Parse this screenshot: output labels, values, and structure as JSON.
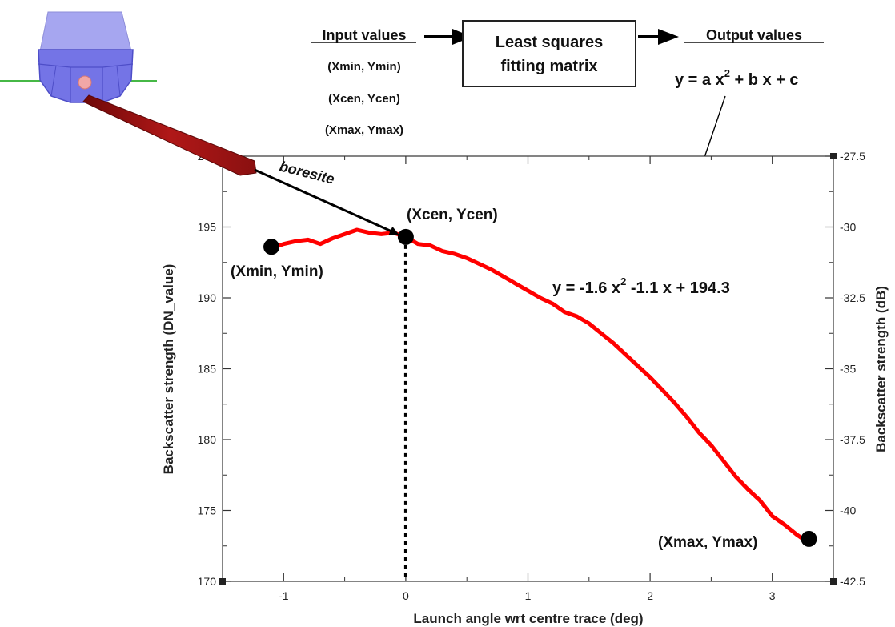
{
  "diagram": {
    "input_header": "Input values",
    "inputs": [
      "(Xmin, Ymin)",
      "(Xcen, Ycen)",
      "(Xmax, Ymax)"
    ],
    "box_label": [
      "Least squares",
      "fitting matrix"
    ],
    "output_header": "Output values",
    "output_equation": {
      "lhs": "y = a x",
      "exp": "2",
      "rhs": " + b x + c"
    },
    "boresite_label": "boresite",
    "fit_equation": {
      "lhs": "y = -1.6 x",
      "exp": "2",
      "rhs": " -1.1 x + 194.3"
    }
  },
  "colors": {
    "curve": "#ff0000",
    "vessel": "#7474e6",
    "vessel_top": "#a6a6f0",
    "beam": "#a31212",
    "waterline": "#46b846",
    "markers": "#000000"
  },
  "chart_data": {
    "type": "line",
    "xlabel": "Launch angle wrt centre trace (deg)",
    "ylabel": "Backscatter strength (DN_value)",
    "y2label": "Backscatter strength (dB)",
    "xlim": [
      -1.5,
      3.5
    ],
    "ylim": [
      170,
      200
    ],
    "y2lim": [
      -42.5,
      -27.5
    ],
    "x_ticks": [
      "-1",
      "0",
      "1",
      "2",
      "3"
    ],
    "y_ticks": [
      "170",
      "175",
      "180",
      "185",
      "190",
      "195",
      "200"
    ],
    "y2_ticks": [
      "-42.5",
      "-40",
      "-37.5",
      "-35",
      "-32.5",
      "-30",
      "-27.5"
    ],
    "series": [
      {
        "x": [
          -1.1,
          -1.0,
          -0.9,
          -0.8,
          -0.7,
          -0.6,
          -0.5,
          -0.4,
          -0.3,
          -0.2,
          -0.1,
          0.0,
          0.1,
          0.2,
          0.3,
          0.4,
          0.5,
          0.6,
          0.7,
          0.8,
          0.9,
          1.0,
          1.1,
          1.2,
          1.3,
          1.4,
          1.5,
          1.6,
          1.7,
          1.8,
          1.9,
          2.0,
          2.1,
          2.2,
          2.3,
          2.4,
          2.5,
          2.6,
          2.7,
          2.8,
          2.9,
          3.0,
          3.1,
          3.2,
          3.25
        ],
        "y": [
          193.5,
          193.8,
          194.0,
          194.1,
          193.8,
          194.2,
          194.5,
          194.8,
          194.6,
          194.5,
          194.6,
          194.3,
          193.8,
          193.7,
          193.3,
          193.1,
          192.8,
          192.4,
          192.0,
          191.5,
          191.0,
          190.5,
          190.0,
          189.6,
          189.0,
          188.7,
          188.2,
          187.5,
          186.8,
          186.0,
          185.2,
          184.4,
          183.5,
          182.6,
          181.6,
          180.5,
          179.6,
          178.5,
          177.4,
          176.5,
          175.7,
          174.6,
          174.0,
          173.3,
          173.0
        ]
      }
    ],
    "points": [
      {
        "label": "(Xmin, Ymin)",
        "x": -1.1,
        "y": 193.6
      },
      {
        "label": "(Xcen, Ycen)",
        "x": 0.0,
        "y": 194.3
      },
      {
        "label": "(Xmax, Ymax)",
        "x": 3.3,
        "y": 173.0
      }
    ]
  }
}
